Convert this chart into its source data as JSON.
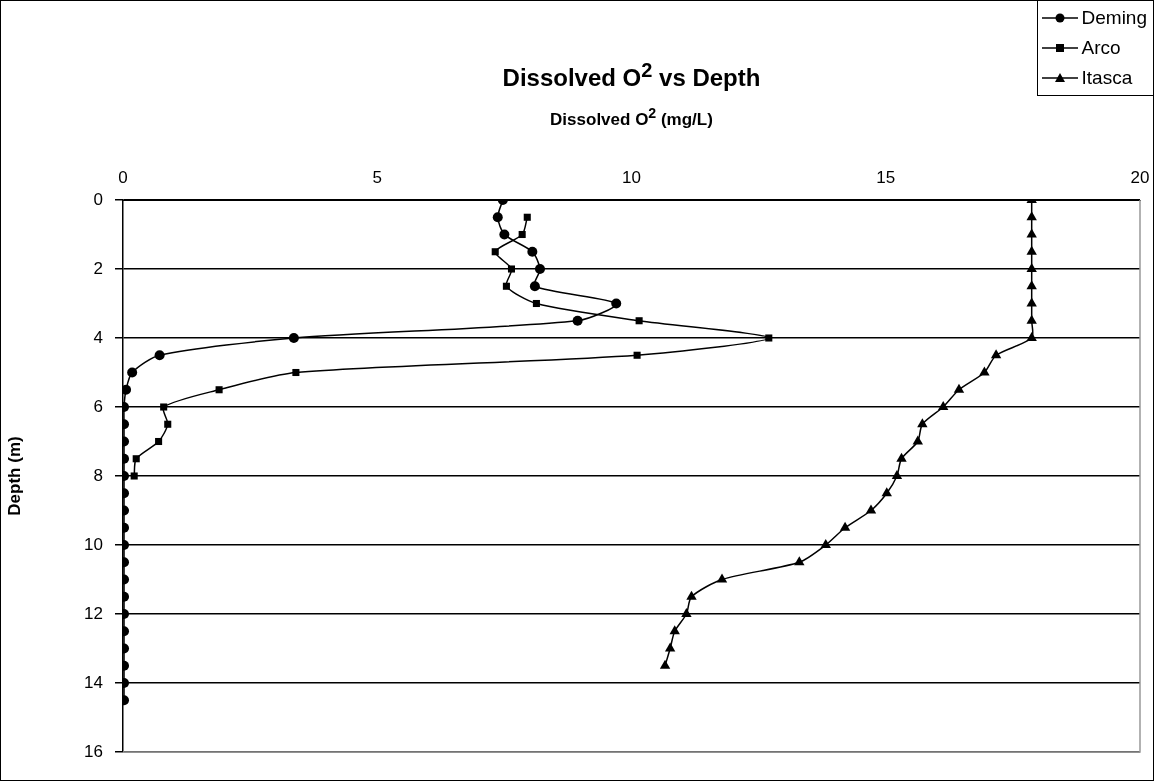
{
  "chart_data": {
    "type": "line",
    "title": "Dissolved O$^{2}$ vs Depth",
    "xlabel": "Dissolved O$^{2}$ (mg/L)",
    "ylabel": "Depth (m)",
    "xlim": [
      0,
      20
    ],
    "xticks": [
      0,
      5,
      10,
      15,
      20
    ],
    "ylim": [
      16,
      0
    ],
    "yticks": [
      0,
      2,
      4,
      6,
      8,
      10,
      12,
      14,
      16
    ],
    "grid": "y",
    "legend": "top right",
    "line_style": "solid",
    "series": [
      {
        "name": "Deming",
        "color": "#000000",
        "marker": "circle",
        "x": [
          7.47,
          7.37,
          7.5,
          8.05,
          8.2,
          8.1,
          9.7,
          8.94,
          3.36,
          0.72,
          0.18,
          0.06,
          0.02,
          0.02,
          0.02,
          0.02,
          0.02,
          0.02,
          0.02,
          0.02,
          0.02,
          0.02,
          0.02,
          0.02,
          0.02,
          0.02,
          0.02,
          0.02,
          0.02,
          0.02
        ],
        "values": [
          0,
          0.5,
          1,
          1.5,
          2,
          2.5,
          3,
          3.5,
          4,
          4.5,
          5,
          5.5,
          6,
          6.5,
          7,
          7.5,
          8,
          8.5,
          9,
          9.5,
          10,
          10.5,
          11,
          11.5,
          12,
          12.5,
          13,
          13.5,
          14,
          14.5
        ]
      },
      {
        "name": "Arco",
        "color": "#000000",
        "marker": "square",
        "x": [
          7.95,
          7.85,
          7.32,
          7.64,
          7.54,
          8.13,
          10.15,
          12.7,
          10.11,
          3.4,
          1.89,
          0.8,
          0.88,
          0.7,
          0.26,
          0.22
        ],
        "values": [
          0.5,
          1,
          1.5,
          2,
          2.5,
          3,
          3.5,
          4,
          4.5,
          5,
          5.5,
          6,
          6.5,
          7,
          7.5,
          8
        ]
      },
      {
        "name": "Itasca",
        "color": "#000000",
        "marker": "triangle",
        "x": [
          17.87,
          17.87,
          17.87,
          17.87,
          17.87,
          17.87,
          17.87,
          17.87,
          17.87,
          17.17,
          16.94,
          16.44,
          16.13,
          15.72,
          15.63,
          15.31,
          15.22,
          15.02,
          14.71,
          14.2,
          13.82,
          13.3,
          11.78,
          11.18,
          11.08,
          10.85,
          10.76,
          10.66
        ],
        "values": [
          0,
          0.5,
          1,
          1.5,
          2,
          2.5,
          3,
          3.5,
          4,
          4.5,
          5,
          5.5,
          6,
          6.5,
          7,
          7.5,
          8,
          8.5,
          9,
          9.5,
          10,
          10.5,
          11,
          11.5,
          12,
          12.5,
          13,
          13.5
        ]
      }
    ]
  }
}
